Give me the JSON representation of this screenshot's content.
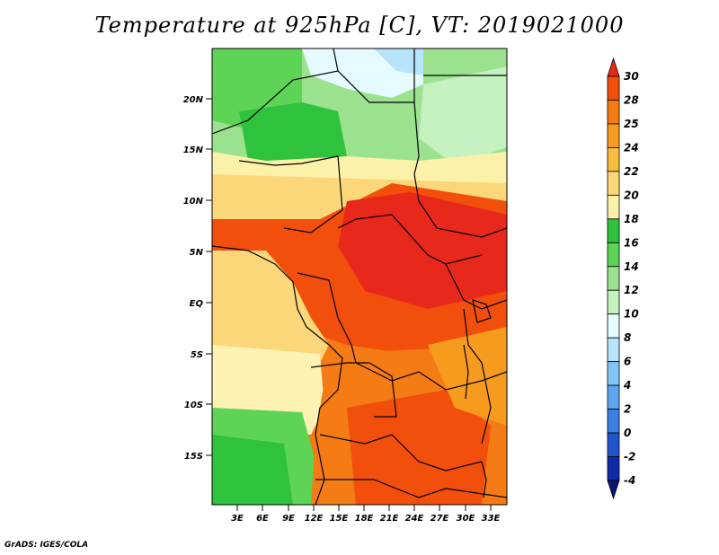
{
  "title": "Temperature at 925hPa [C], VT: 2019021000",
  "footer": "GrADS: IGES/COLA",
  "lat_labels": [
    "20N",
    "15N",
    "10N",
    "5N",
    "EQ",
    "5S",
    "10S",
    "15S"
  ],
  "lon_labels": [
    "3E",
    "6E",
    "9E",
    "12E",
    "15E",
    "18E",
    "21E",
    "24E",
    "27E",
    "30E",
    "33E"
  ],
  "colorbar": {
    "labels": [
      "30",
      "28",
      "25",
      "24",
      "22",
      "20",
      "18",
      "16",
      "14",
      "12",
      "10",
      "8",
      "6",
      "4",
      "2",
      "0",
      "-2",
      "-4"
    ],
    "colors": [
      "#e8281a",
      "#f24f0c",
      "#f57b14",
      "#f79b1e",
      "#f7bd3c",
      "#fbd77a",
      "#fcf1a8",
      "#2fc23c",
      "#5ed457",
      "#9be28f",
      "#c5f0bf",
      "#e6fbff",
      "#b7e3fb",
      "#82c4f6",
      "#5fa6ee",
      "#3b7fe3",
      "#1e55cf",
      "#0f2aa8",
      "#0a1571"
    ]
  },
  "colors": {
    "ocean_pale": "#fbe28c",
    "ocean_lighter": "#fdf2b3",
    "warm": "#f57b14",
    "hot": "#e8281a",
    "green": "#5ed457",
    "light_blue": "#e6fbff"
  }
}
